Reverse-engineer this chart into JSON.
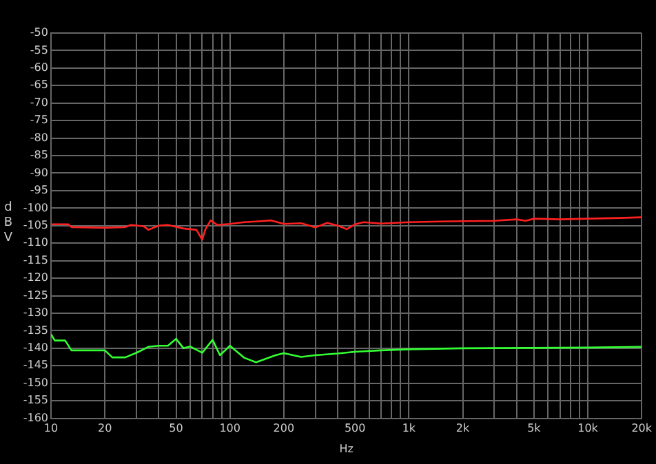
{
  "chart_data": {
    "type": "line",
    "xlabel": "Hz",
    "ylabel": "dBV",
    "log": "x",
    "grid": true,
    "marker": "none",
    "xlim": [
      10,
      20000
    ],
    "ylim": [
      -160,
      -50
    ],
    "xticks": [
      10,
      20,
      {
        "value": 30,
        "label": null
      },
      {
        "value": 40,
        "label": null
      },
      50,
      {
        "value": 60,
        "label": null
      },
      {
        "value": 70,
        "label": null
      },
      {
        "value": 80,
        "label": null
      },
      {
        "value": 90,
        "label": null
      },
      100,
      200,
      {
        "value": 300,
        "label": null
      },
      {
        "value": 400,
        "label": null
      },
      500,
      {
        "value": 600,
        "label": null
      },
      {
        "value": 700,
        "label": null
      },
      {
        "value": 800,
        "label": null
      },
      {
        "value": 900,
        "label": null
      },
      {
        "value": 1000,
        "label": "1k"
      },
      {
        "value": 2000,
        "label": "2k"
      },
      {
        "value": 3000,
        "label": null
      },
      {
        "value": 4000,
        "label": null
      },
      {
        "value": 5000,
        "label": "5k"
      },
      {
        "value": 6000,
        "label": null
      },
      {
        "value": 7000,
        "label": null
      },
      {
        "value": 8000,
        "label": null
      },
      {
        "value": 9000,
        "label": null
      },
      {
        "value": 10000,
        "label": "10k"
      },
      {
        "value": 20000,
        "label": "20k"
      }
    ],
    "yticks": [
      -160,
      -155,
      -150,
      -145,
      -140,
      -135,
      -130,
      -125,
      -120,
      -115,
      -110,
      -105,
      -100,
      -95,
      -90,
      -85,
      -80,
      -75,
      -70,
      -65,
      -60,
      -55,
      -50
    ],
    "series": [
      {
        "color": "#ff2020",
        "x": [
          10,
          12.5,
          13,
          20,
          26,
          28,
          33,
          35,
          40,
          45,
          55,
          65,
          70,
          73,
          78,
          85,
          100,
          120,
          140,
          170,
          200,
          250,
          300,
          350,
          400,
          450,
          500,
          560,
          700,
          1000,
          1500,
          2000,
          3000,
          4000,
          4500,
          5000,
          7000,
          10000,
          15000,
          20000
        ],
        "values": [
          -104.6,
          -104.6,
          -105.4,
          -105.6,
          -105.4,
          -104.8,
          -105.2,
          -106.2,
          -105,
          -104.8,
          -105.8,
          -106.2,
          -109,
          -106,
          -103.5,
          -104.8,
          -104.5,
          -104,
          -103.8,
          -103.5,
          -104.5,
          -104.3,
          -105.5,
          -104.2,
          -105,
          -106,
          -104.6,
          -104,
          -104.4,
          -104,
          -103.8,
          -103.7,
          -103.6,
          -103.2,
          -103.6,
          -103,
          -103.2,
          -103,
          -102.8,
          -102.6
        ]
      },
      {
        "color": "#33ff33",
        "x": [
          10,
          10.5,
          12,
          13,
          20,
          22,
          26,
          30,
          35,
          40,
          45,
          50,
          55,
          60,
          70,
          80,
          88,
          100,
          120,
          140,
          180,
          200,
          250,
          300,
          400,
          500,
          700,
          1000,
          2000,
          5000,
          10000,
          20000
        ],
        "values": [
          -136,
          -137.8,
          -137.8,
          -140.6,
          -140.6,
          -142.6,
          -142.6,
          -141.3,
          -139.6,
          -139.3,
          -139.3,
          -137.3,
          -140,
          -139.5,
          -141.3,
          -137.6,
          -142,
          -139.3,
          -142.7,
          -144,
          -142,
          -141.4,
          -142.5,
          -142,
          -141.5,
          -141,
          -140.6,
          -140.3,
          -140,
          -139.9,
          -139.8,
          -139.6
        ]
      }
    ]
  }
}
